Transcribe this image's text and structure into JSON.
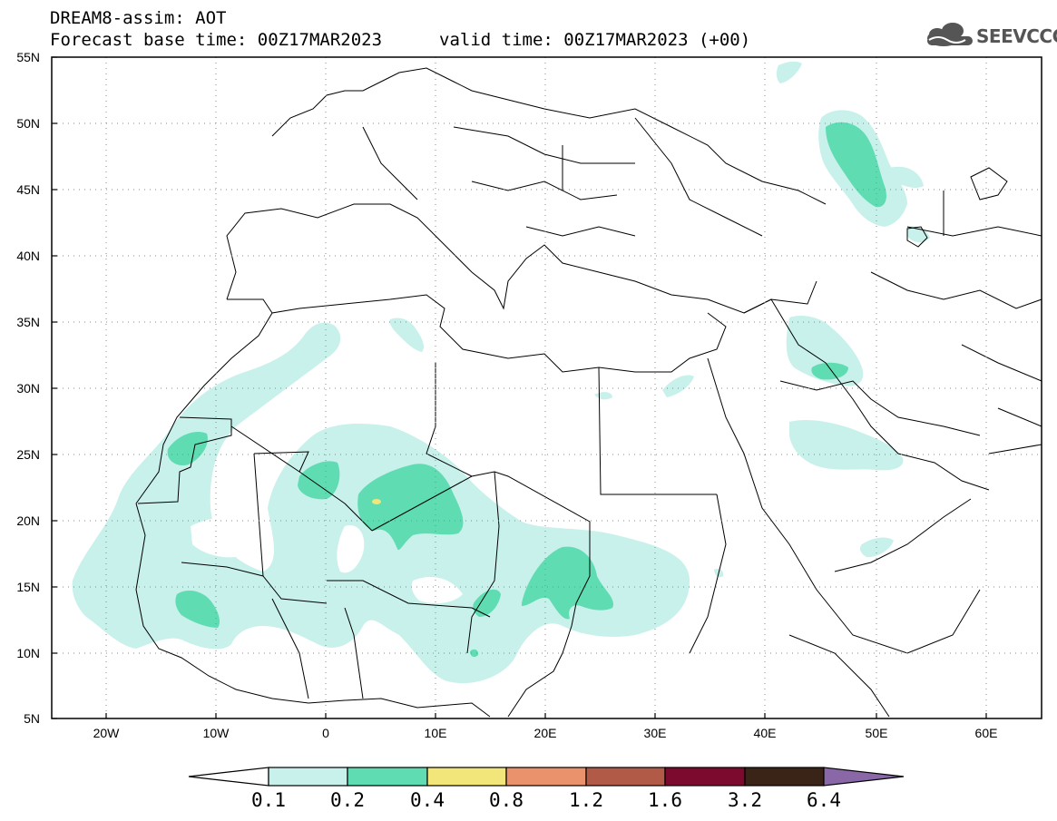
{
  "header": {
    "title_line1": "DREAM8-assim: AOT",
    "title_line2": "Forecast base time: 00Z17MAR2023",
    "valid_time": "valid time: 00Z17MAR2023 (+00)",
    "logo_text": "SEEVCCC"
  },
  "map": {
    "lat_labels": [
      "55N",
      "50N",
      "45N",
      "40N",
      "35N",
      "30N",
      "25N",
      "20N",
      "15N",
      "10N",
      "5N"
    ],
    "lon_labels": [
      "20W",
      "10W",
      "0",
      "10E",
      "20E",
      "30E",
      "40E",
      "50E",
      "60E"
    ],
    "lon_range": [
      -25,
      65
    ],
    "lat_range": [
      5,
      55
    ]
  },
  "colorbar": {
    "labels": [
      "0.1",
      "0.2",
      "0.4",
      "0.8",
      "1.2",
      "1.6",
      "3.2",
      "6.4"
    ],
    "colors": [
      "#c8f1ec",
      "#5fdcb2",
      "#f2e67a",
      "#e9926b",
      "#b25a48",
      "#7c0a2e",
      "#3a2418",
      "#8a68a8"
    ]
  }
}
